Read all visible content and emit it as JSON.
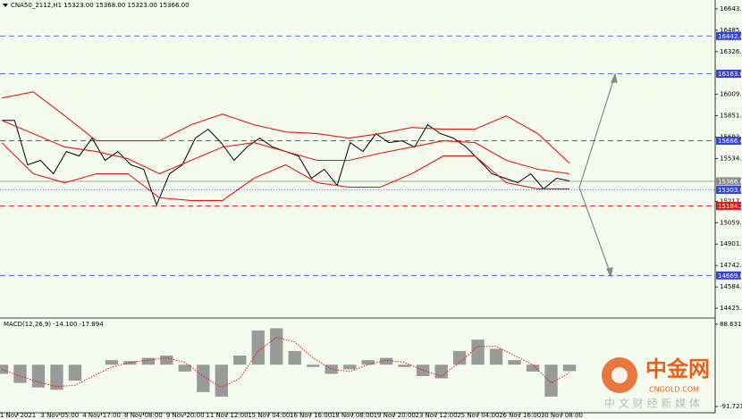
{
  "header": {
    "title": "CNA50_2112,H1  15323.00 15368.00 15323.00 15366.00"
  },
  "chart_data": {
    "type": "line",
    "ylim": [
      14360,
      16709
    ],
    "yticks": [
      {
        "value": 16643.4,
        "label": "16643.40"
      },
      {
        "value": 16485,
        "label": "16485.00"
      },
      {
        "value": 16326.6,
        "label": "16326.60"
      },
      {
        "value": 16009.8,
        "label": "16009.80"
      },
      {
        "value": 15851.4,
        "label": "15851.40"
      },
      {
        "value": 15693,
        "label": "15693.00"
      },
      {
        "value": 15534.6,
        "label": "15534.60"
      },
      {
        "value": 15217.8,
        "label": "15217.80"
      },
      {
        "value": 15059.4,
        "label": "15059.40"
      },
      {
        "value": 14901,
        "label": "14901.00"
      },
      {
        "value": 14742.6,
        "label": "14742.60"
      },
      {
        "value": 14584.2,
        "label": "14584.20"
      },
      {
        "value": 14425.8,
        "label": "14425.80"
      }
    ],
    "x_labels": [
      "1 Nov 2021",
      "3 Nov 05:00",
      "4 Nov 17:00",
      "8 Nov 08:00",
      "9 Nov 20:00",
      "11 Nov 12:00",
      "15 Nov 04:00",
      "16 Nov 16:00",
      "18 Nov 08:00",
      "19 Nov 20:00",
      "23 Nov 12:00",
      "25 Nov 04:00",
      "26 Nov 16:00",
      "30 Nov 08:00"
    ],
    "series": [
      {
        "color": "#000000",
        "values": [
          15818,
          15818,
          15488,
          15521,
          15422,
          15587,
          15554,
          15686,
          15521,
          15587,
          15488,
          15455,
          15191,
          15422,
          15488,
          15686,
          15752,
          15653,
          15521,
          15620,
          15686,
          15620,
          15587,
          15554,
          15389,
          15455,
          15336,
          15653,
          15587,
          15719,
          15653,
          15666,
          15620,
          15785,
          15719,
          15686,
          15620,
          15521,
          15422,
          15389,
          15356,
          15422,
          15310,
          15389,
          15369
        ]
      },
      {
        "color": "#e01818",
        "values": [
          15983,
          16029,
          15851,
          15666,
          15666,
          15666,
          15785,
          15864,
          15785,
          15732,
          15719,
          15686,
          15719,
          15765,
          15752,
          15752,
          15851,
          15719,
          15501
        ]
      },
      {
        "color": "#e01818",
        "values": [
          15818,
          15719,
          15620,
          15587,
          15534,
          15422,
          15521,
          15620,
          15653,
          15587,
          15521,
          15521,
          15574,
          15620,
          15666,
          15653,
          15521,
          15455,
          15422
        ]
      },
      {
        "color": "#e01818",
        "values": [
          15653,
          15422,
          15356,
          15422,
          15422,
          15244,
          15224,
          15224,
          15389,
          15488,
          15356,
          15323,
          15323,
          15422,
          15554,
          15554,
          15356,
          15310,
          15310
        ]
      }
    ],
    "levels": [
      {
        "value": 16442.48,
        "label": "16442.48",
        "color": "#3344dd"
      },
      {
        "value": 16163,
        "label": "16163.00",
        "color": "#3344dd"
      },
      {
        "value": 15666.41,
        "label": "15666.41",
        "color": "#3344dd"
      },
      {
        "value": 15366,
        "label": "15366.00",
        "color": "#8a8a8a"
      },
      {
        "value": 15303,
        "label": "15303.00",
        "color": "#3344dd"
      },
      {
        "value": 15184.26,
        "label": "15184.26",
        "color": "#e01818"
      },
      {
        "value": 14669.06,
        "label": "14669.06",
        "color": "#3344dd"
      }
    ]
  },
  "macd": {
    "title": "MACD(12,26,9) -14.100 -17.894",
    "ylim": [
      -105.4,
      100.4
    ],
    "yticks": [
      88.631,
      -91.721
    ],
    "histogram": [
      -20,
      -40,
      -50,
      -55,
      -35,
      0,
      10,
      8,
      15,
      20,
      -15,
      -60,
      -70,
      20,
      75,
      80,
      30,
      -5,
      -20,
      -10,
      10,
      15,
      -5,
      -25,
      -30,
      30,
      55,
      35,
      10,
      -15,
      -70,
      -14.1
    ],
    "signal": [
      -10,
      -25,
      -38,
      -48,
      -45,
      -25,
      -5,
      5,
      10,
      15,
      5,
      -25,
      -50,
      -30,
      30,
      60,
      50,
      15,
      -10,
      -15,
      0,
      10,
      5,
      -12,
      -25,
      5,
      40,
      40,
      20,
      0,
      -40,
      -17.894
    ]
  },
  "watermark": {
    "name": "中金网",
    "domain": "CNGOLD.COM",
    "slogan": "中 文 财 经 新 媒 体"
  }
}
